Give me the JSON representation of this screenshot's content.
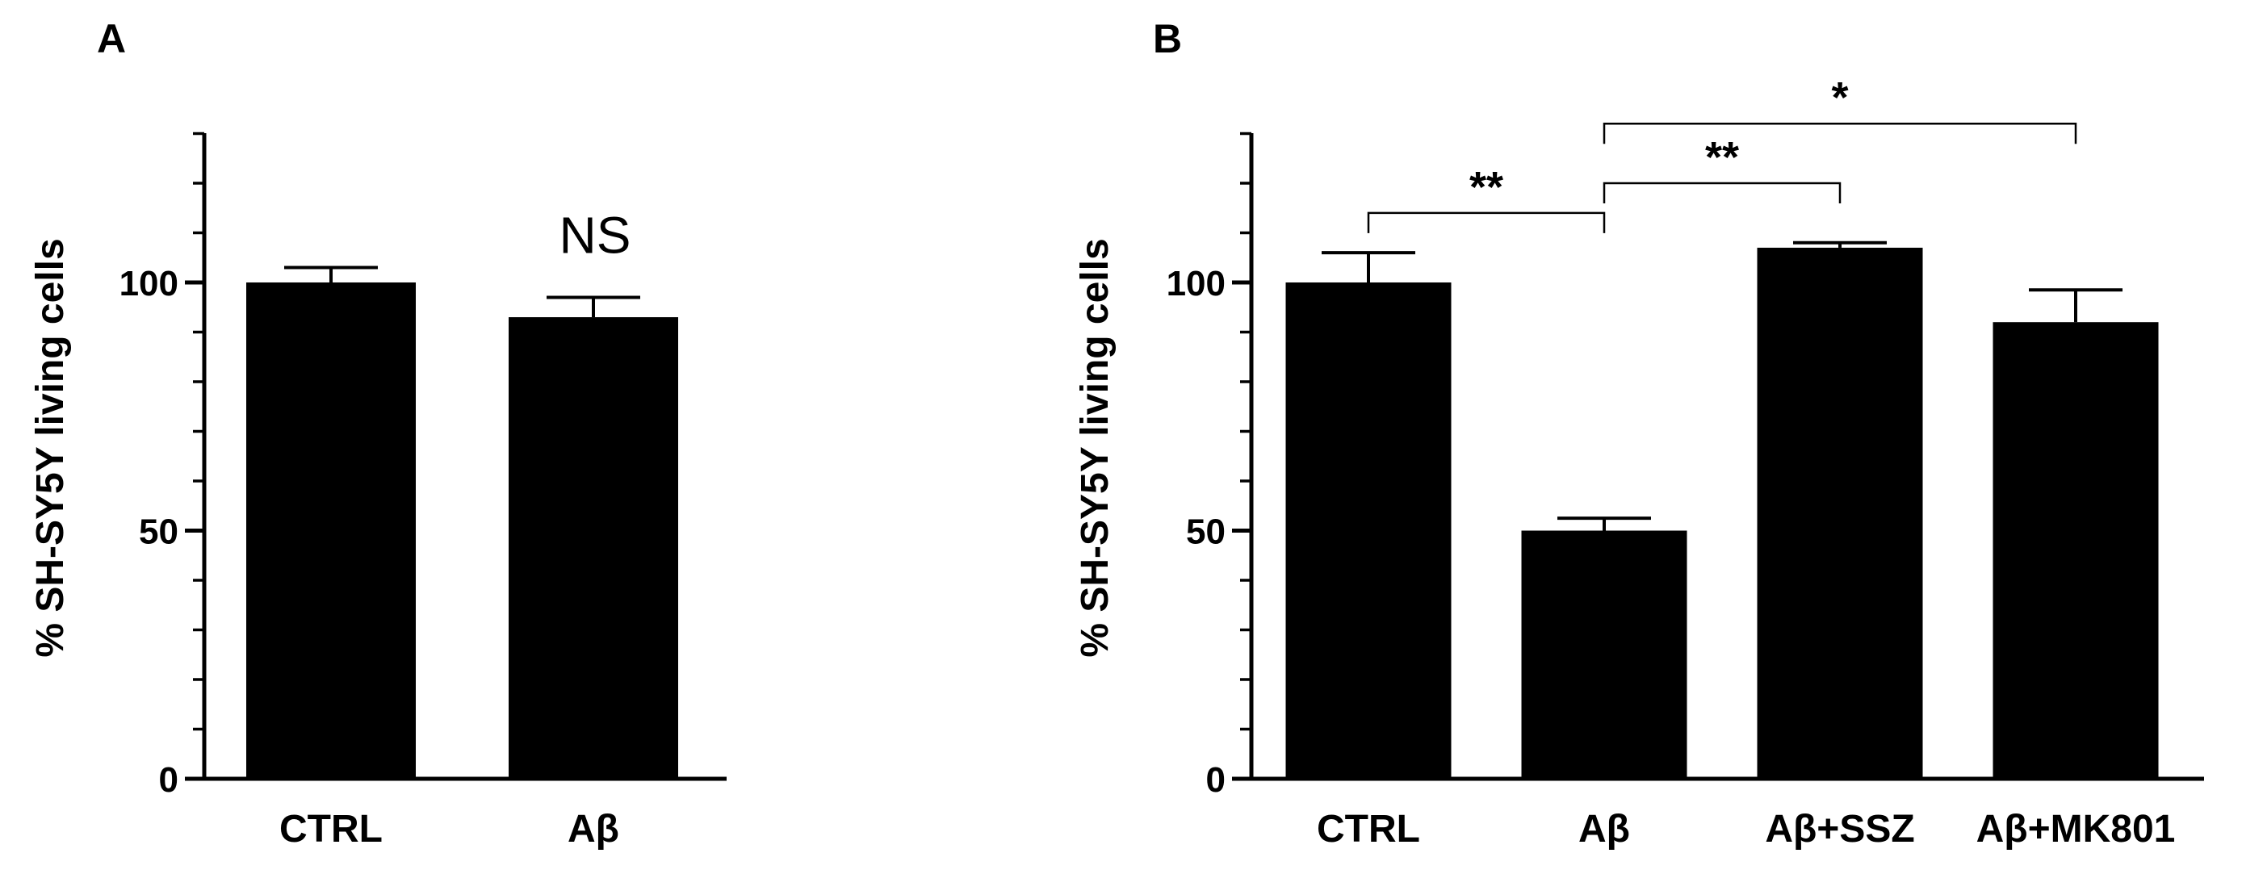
{
  "chart_data": [
    {
      "panel": "A",
      "type": "bar",
      "ylabel": "% SH-SY5Y living cells",
      "ylim": [
        0,
        130
      ],
      "yticks": [
        0,
        50,
        100
      ],
      "categories": [
        "CTRL",
        "Aβ"
      ],
      "values": [
        100,
        93
      ],
      "errors": [
        3,
        4
      ],
      "annotations": [
        {
          "category_index": 1,
          "text": "NS"
        }
      ]
    },
    {
      "panel": "B",
      "type": "bar",
      "ylabel": "% SH-SY5Y living cells",
      "ylim": [
        0,
        130
      ],
      "yticks": [
        0,
        50,
        100
      ],
      "categories": [
        "CTRL",
        "Aβ",
        "Aβ+SSZ",
        "Aβ+MK801"
      ],
      "values": [
        100,
        50,
        107,
        92
      ],
      "errors": [
        6,
        2.5,
        1,
        6.5
      ],
      "comparisons": [
        {
          "from": 0,
          "to": 1,
          "label": "**",
          "y": 114
        },
        {
          "from": 1,
          "to": 2,
          "label": "**",
          "y": 120
        },
        {
          "from": 1,
          "to": 3,
          "label": "*",
          "y": 132
        }
      ]
    }
  ]
}
